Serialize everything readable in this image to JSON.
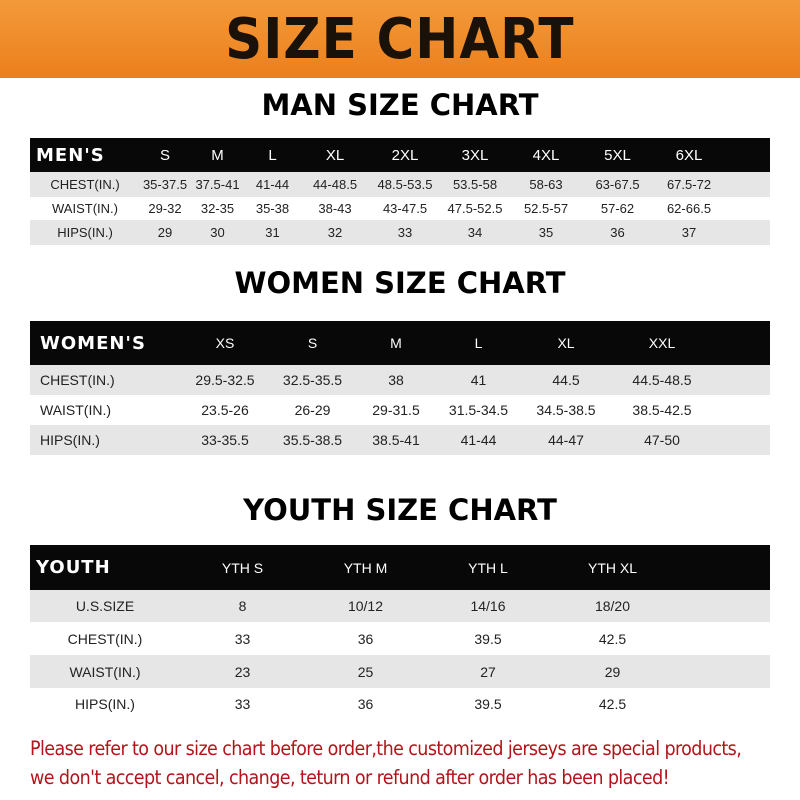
{
  "banner": {
    "title": "SIZE CHART",
    "background_color": "#ec7f1c"
  },
  "men": {
    "title": "MAN SIZE CHART",
    "header": [
      "MEN'S",
      "S",
      "M",
      "L",
      "XL",
      "2XL",
      "3XL",
      "4XL",
      "5XL",
      "6XL"
    ],
    "rows": [
      [
        "CHEST(IN.)",
        "35-37.5",
        "37.5-41",
        "41-44",
        "44-48.5",
        "48.5-53.5",
        "53.5-58",
        "58-63",
        "63-67.5",
        "67.5-72"
      ],
      [
        "WAIST(IN.)",
        "29-32",
        "32-35",
        "35-38",
        "38-43",
        "43-47.5",
        "47.5-52.5",
        "52.5-57",
        "57-62",
        "62-66.5"
      ],
      [
        "HIPS(IN.)",
        "29",
        "30",
        "31",
        "32",
        "33",
        "34",
        "35",
        "36",
        "37"
      ]
    ]
  },
  "women": {
    "title": "WOMEN SIZE CHART",
    "header": [
      "WOMEN'S",
      "XS",
      "S",
      "M",
      "L",
      "XL",
      "XXL"
    ],
    "rows": [
      [
        "CHEST(IN.)",
        "29.5-32.5",
        "32.5-35.5",
        "38",
        "41",
        "44.5",
        "44.5-48.5"
      ],
      [
        "WAIST(IN.)",
        "23.5-26",
        "26-29",
        "29-31.5",
        "31.5-34.5",
        "34.5-38.5",
        "38.5-42.5"
      ],
      [
        "HIPS(IN.)",
        "33-35.5",
        "35.5-38.5",
        "38.5-41",
        "41-44",
        "44-47",
        "47-50"
      ]
    ]
  },
  "youth": {
    "title": "YOUTH SIZE CHART",
    "header": [
      "YOUTH",
      "YTH S",
      "YTH M",
      "YTH L",
      "YTH XL"
    ],
    "rows": [
      [
        "U.S.SIZE",
        "8",
        "10/12",
        "14/16",
        "18/20"
      ],
      [
        "CHEST(IN.)",
        "33",
        "36",
        "39.5",
        "42.5"
      ],
      [
        "WAIST(IN.)",
        "23",
        "25",
        "27",
        "29"
      ],
      [
        "HIPS(IN.)",
        "33",
        "36",
        "39.5",
        "42.5"
      ]
    ]
  },
  "note": {
    "line1": "Please refer to our size chart before order,the customized jerseys are special products,",
    "line2": "we don't accept cancel, change, teturn or refund after order has been placed!",
    "color": "#b5131a"
  }
}
